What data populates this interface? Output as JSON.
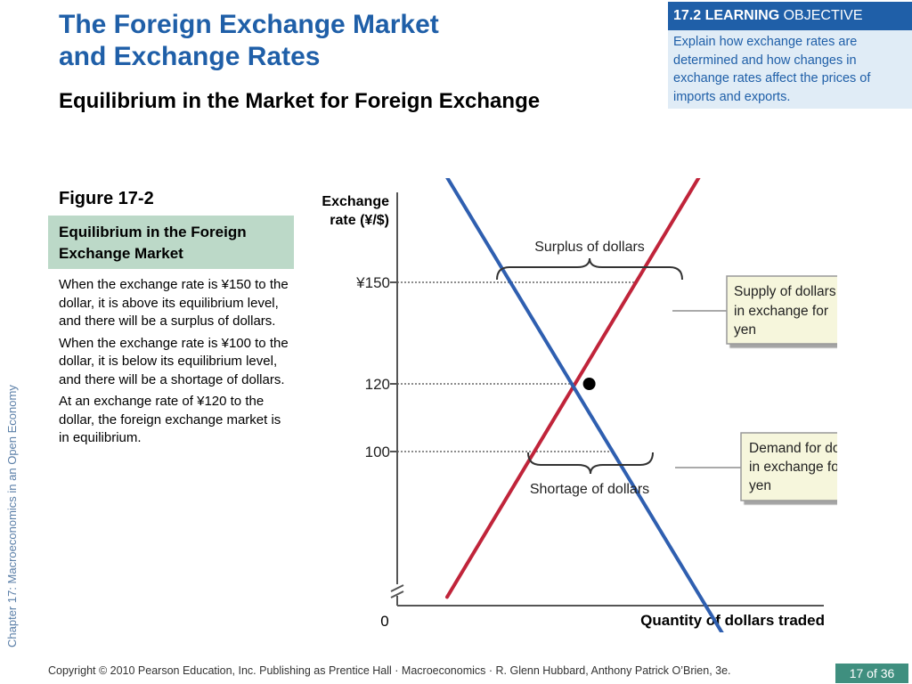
{
  "slide": {
    "title_line1": "The Foreign Exchange Market",
    "title_line2": "and Exchange Rates",
    "subtitle": "Equilibrium in the Market for Foreign Exchange",
    "learning_objective": {
      "number_label": "17.2 LEARNING",
      "word": "OBJECTIVE",
      "text": "Explain how exchange rates are determined and how changes in exchange rates affect the prices of imports and exports."
    },
    "vertical_footer": "Chapter 17:  Macroeconomics in an Open Economy",
    "copyright": "Copyright © 2010 Pearson Education, Inc. Publishing as Prentice Hall · Macroeconomics · R. Glenn Hubbard, Anthony Patrick O’Brien, 3e.",
    "page": "17 of 36",
    "colors": {
      "title_blue": "#1f5fa8",
      "fig_title_bg": "#bcd9c8",
      "page_badge": "#3f8f7f"
    }
  },
  "figure": {
    "label": "Figure 17-2",
    "title": "Equilibrium in the Foreign Exchange Market",
    "notes": [
      "When the exchange rate is ¥150 to the dollar, it is above its equilibrium level, and there will be a surplus of dollars.",
      "When the exchange rate is ¥100 to the dollar, it is below its equilibrium level, and there will be a shortage of dollars.",
      "At an exchange rate of ¥120 to the dollar, the foreign exchange market is in equilibrium."
    ]
  },
  "chart_data": {
    "type": "line",
    "ylabel_line1": "Exchange",
    "ylabel_line2": "rate (¥/$)",
    "xlabel": "Quantity of dollars traded",
    "origin_label": "0",
    "y_ticks": [
      {
        "value": 150,
        "label": "¥150"
      },
      {
        "value": 120,
        "label": "120"
      },
      {
        "value": 100,
        "label": "100"
      }
    ],
    "series": [
      {
        "name": "Supply",
        "color": "#c0243a",
        "points": [
          [
            1.0,
            57
          ],
          [
            6.7,
            197
          ]
        ]
      },
      {
        "name": "Demand",
        "color": "#2f5fb0",
        "points": [
          [
            1.0,
            181
          ],
          [
            6.9,
            37
          ]
        ]
      }
    ],
    "equilibrium": {
      "x": 3.85,
      "y": 120
    },
    "annotations": {
      "surplus": "Surplus of dollars",
      "shortage": "Shortage of dollars",
      "supply_box": [
        "Supply of dollars",
        "in exchange for",
        "yen"
      ],
      "demand_box": [
        "Demand for dollars",
        "in exchange for",
        "yen"
      ]
    },
    "grid": false
  }
}
